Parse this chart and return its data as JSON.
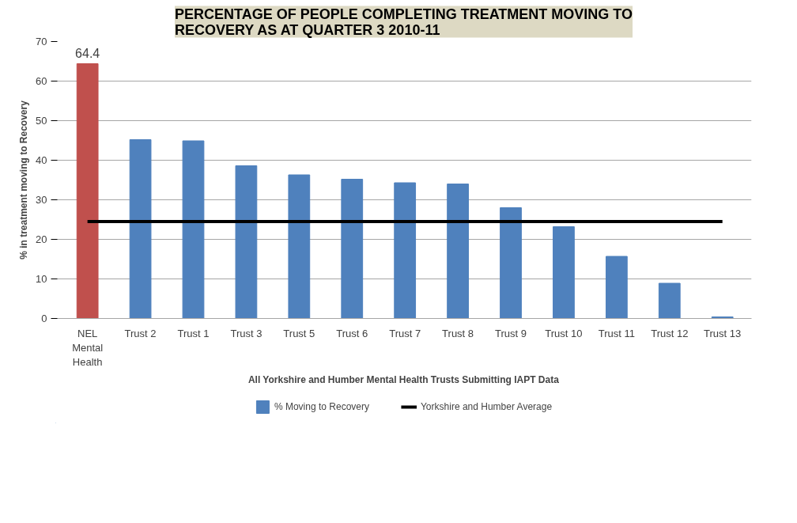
{
  "chart_data": {
    "type": "bar",
    "title": "PERCENTAGE OF PEOPLE COMPLETING TREATMENT MOVING TO RECOVERY AS AT QUARTER 3 2010-11",
    "xlabel": "All Yorkshire and Humber Mental Health Trusts Submitting IAPT Data",
    "ylabel": "% in treatment moving to Recovery",
    "categories": [
      "NEL Mental Health",
      "Trust 2",
      "Trust 1",
      "Trust 3",
      "Trust 5",
      "Trust 6",
      "Trust 7",
      "Trust 8",
      "Trust 9",
      "Trust 10",
      "Trust 11",
      "Trust 12",
      "Trust 13"
    ],
    "series": [
      {
        "name": "% Moving to Recovery",
        "type": "bar",
        "color": "#4f81bd",
        "colors": [
          "#c0504d",
          "#4f81bd",
          "#4f81bd",
          "#4f81bd",
          "#4f81bd",
          "#4f81bd",
          "#4f81bd",
          "#4f81bd",
          "#4f81bd",
          "#4f81bd",
          "#4f81bd",
          "#4f81bd",
          "#4f81bd"
        ],
        "values": [
          64.4,
          45.2,
          44.9,
          38.6,
          36.3,
          35.2,
          34.3,
          34.0,
          28.0,
          23.2,
          15.7,
          8.9,
          0.4
        ],
        "value_labels": [
          "64.4",
          null,
          null,
          null,
          null,
          null,
          null,
          null,
          null,
          null,
          null,
          null,
          null
        ]
      },
      {
        "name": "Yorkshire and Humber Average",
        "type": "line",
        "color": "#000000",
        "values": [
          24.5,
          24.5,
          24.5,
          24.5,
          24.5,
          24.5,
          24.5,
          24.5,
          24.5,
          24.5,
          24.5,
          24.5,
          24.5
        ]
      }
    ],
    "ylim": [
      0,
      70
    ],
    "yticks": [
      0,
      10,
      20,
      30,
      40,
      50,
      60,
      70
    ],
    "grid": "y",
    "legend": "bottom"
  }
}
